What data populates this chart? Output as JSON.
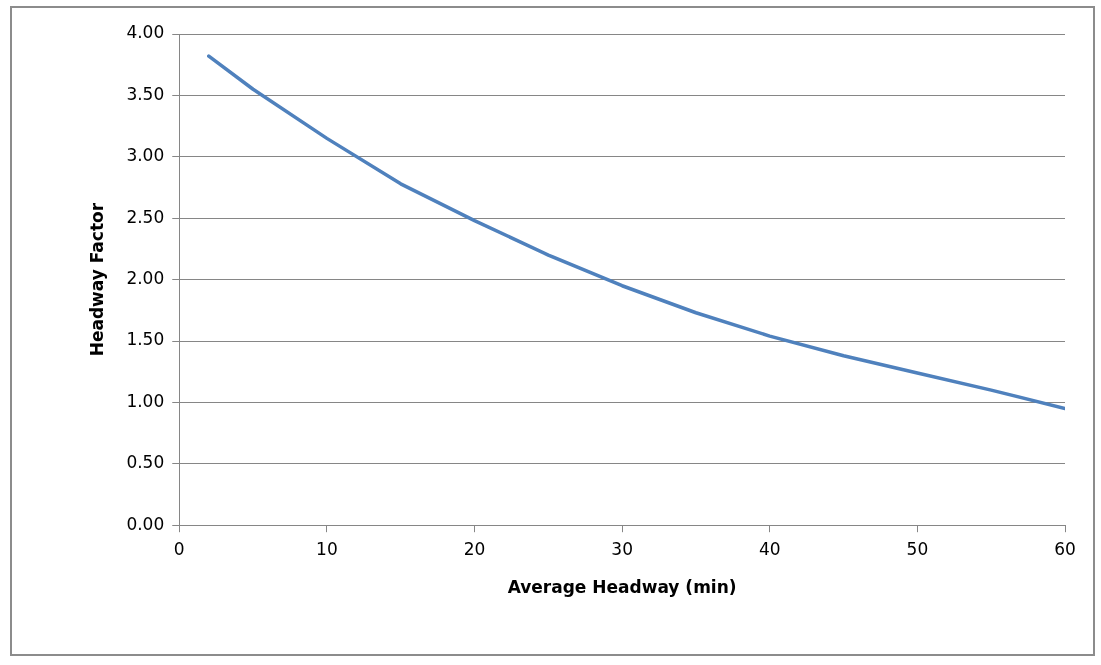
{
  "chart_data": {
    "type": "line",
    "xlabel": "Average Headway (min)",
    "ylabel": "Headway Factor",
    "x": [
      2,
      5,
      10,
      15,
      20,
      25,
      30,
      35,
      40,
      45,
      50,
      55,
      60
    ],
    "series": [
      {
        "color": "#4f81bd",
        "values": [
          3.82,
          3.55,
          3.15,
          2.78,
          2.48,
          2.2,
          1.95,
          1.73,
          1.54,
          1.38,
          1.24,
          1.1,
          0.95
        ]
      }
    ],
    "xlim": [
      0,
      60
    ],
    "xticks": [
      0,
      10,
      20,
      30,
      40,
      50,
      60
    ],
    "ylim": [
      0,
      4
    ],
    "yticks": [
      {
        "value": 0,
        "label": "0.00"
      },
      {
        "value": 0.5,
        "label": "0.50"
      },
      {
        "value": 1,
        "label": "1.00"
      },
      {
        "value": 1.5,
        "label": "1.50"
      },
      {
        "value": 2,
        "label": "2.00"
      },
      {
        "value": 2.5,
        "label": "2.50"
      },
      {
        "value": 3,
        "label": "3.00"
      },
      {
        "value": 3.5,
        "label": "3.50"
      },
      {
        "value": 4,
        "label": "4.00"
      }
    ],
    "grid": "y",
    "legend": false,
    "marker": "none",
    "line_style": "solid"
  }
}
